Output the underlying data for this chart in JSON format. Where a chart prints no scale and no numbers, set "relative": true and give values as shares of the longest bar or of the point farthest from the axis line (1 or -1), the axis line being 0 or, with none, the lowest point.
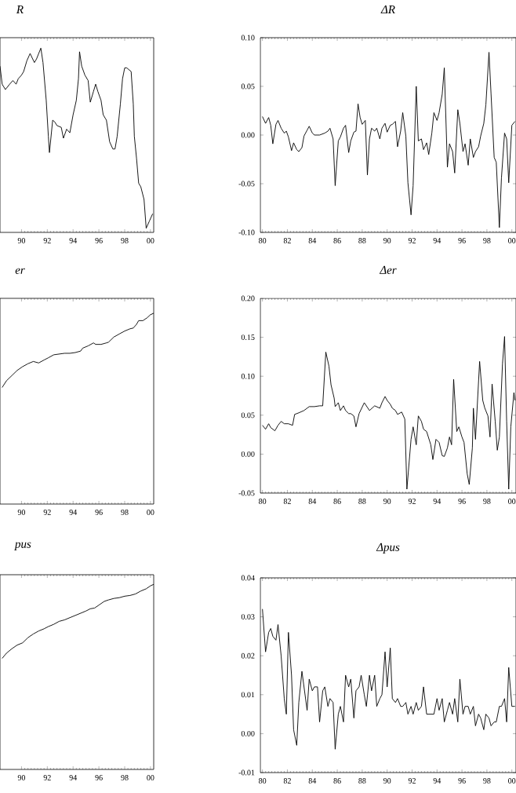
{
  "chart_data": [
    {
      "type": "line",
      "title": "R",
      "relative": true,
      "color": "#000000",
      "xlim": [
        "1988-05",
        "2000-04"
      ],
      "xticks": [
        {
          "value": "1990",
          "label": "90"
        },
        {
          "value": "1992",
          "label": "92"
        },
        {
          "value": "1994",
          "label": "94"
        },
        {
          "value": "1996",
          "label": "96"
        },
        {
          "value": "1998",
          "label": "98"
        },
        {
          "value": "2000",
          "label": "00"
        }
      ],
      "x": [
        "1988-05",
        "1988-07",
        "1988-10",
        "1989-02",
        "1989-05",
        "1989-08",
        "1989-10",
        "1990-01",
        "1990-03",
        "1990-06",
        "1990-09",
        "1991-01",
        "1991-03",
        "1991-07",
        "1991-09",
        "1991-12",
        "1992-02",
        "1992-03",
        "1992-06",
        "1992-08",
        "1992-10",
        "1993-02",
        "1993-04",
        "1993-07",
        "1993-10",
        "1994-01",
        "1994-04",
        "1994-06",
        "1994-07",
        "1994-09",
        "1994-12",
        "1995-03",
        "1995-05",
        "1995-08",
        "1995-10",
        "1995-12",
        "1996-03",
        "1996-05",
        "1996-08",
        "1996-11",
        "1997-02",
        "1997-04",
        "1997-06",
        "1997-09",
        "1997-11",
        "1998-01",
        "1998-03",
        "1998-07",
        "1998-09",
        "1998-10",
        "1998-12",
        "1999-02",
        "1999-04",
        "1999-07",
        "1999-09",
        "1999-12",
        "2000-03"
      ],
      "values": [
        0.9,
        0.8,
        0.77,
        0.8,
        0.82,
        0.8,
        0.83,
        0.85,
        0.87,
        0.93,
        0.97,
        0.92,
        0.94,
        1.0,
        0.92,
        0.71,
        0.51,
        0.42,
        0.6,
        0.59,
        0.57,
        0.56,
        0.5,
        0.55,
        0.53,
        0.63,
        0.71,
        0.83,
        0.98,
        0.9,
        0.85,
        0.82,
        0.7,
        0.76,
        0.8,
        0.76,
        0.71,
        0.63,
        0.6,
        0.48,
        0.44,
        0.44,
        0.51,
        0.69,
        0.83,
        0.89,
        0.89,
        0.87,
        0.69,
        0.51,
        0.39,
        0.25,
        0.23,
        0.16,
        0.0,
        0.04,
        0.08
      ]
    },
    {
      "type": "line",
      "title": "ΔR",
      "color": "#000000",
      "xlim": [
        "1979-11",
        "2000-05"
      ],
      "ylim": [
        -0.1,
        0.1
      ],
      "xticks": [
        {
          "value": "1980",
          "label": "80"
        },
        {
          "value": "1982",
          "label": "82"
        },
        {
          "value": "1984",
          "label": "84"
        },
        {
          "value": "1986",
          "label": "86"
        },
        {
          "value": "1988",
          "label": "88"
        },
        {
          "value": "1990",
          "label": "90"
        },
        {
          "value": "1992",
          "label": "92"
        },
        {
          "value": "1994",
          "label": "94"
        },
        {
          "value": "1996",
          "label": "96"
        },
        {
          "value": "1998",
          "label": "98"
        },
        {
          "value": "2000",
          "label": "00"
        }
      ],
      "yticks": [
        {
          "value": -0.1,
          "label": "-0.10"
        },
        {
          "value": -0.05,
          "label": "-0.05"
        },
        {
          "value": 0,
          "label": "0.00"
        },
        {
          "value": 0.05,
          "label": "0.05"
        },
        {
          "value": 0.1,
          "label": "0.10"
        }
      ],
      "x": [
        "1980-01",
        "1980-04",
        "1980-07",
        "1980-09",
        "1980-11",
        "1981-02",
        "1981-04",
        "1981-07",
        "1981-10",
        "1981-12",
        "1982-02",
        "1982-05",
        "1982-07",
        "1982-10",
        "1982-12",
        "1983-03",
        "1983-05",
        "1983-08",
        "1983-10",
        "1984-01",
        "1984-03",
        "1984-08",
        "1985-01",
        "1985-04",
        "1985-06",
        "1985-09",
        "1985-11",
        "1986-02",
        "1986-04",
        "1986-07",
        "1986-09",
        "1986-12",
        "1987-02",
        "1987-05",
        "1987-07",
        "1987-09",
        "1987-11",
        "1988-01",
        "1988-04",
        "1988-06",
        "1988-08",
        "1988-10",
        "1989-01",
        "1989-03",
        "1989-06",
        "1989-08",
        "1989-11",
        "1990-01",
        "1990-04",
        "1990-06",
        "1990-09",
        "1990-11",
        "1991-02",
        "1991-04",
        "1991-07",
        "1991-09",
        "1991-12",
        "1992-02",
        "1992-05",
        "1992-07",
        "1992-10",
        "1992-12",
        "1993-03",
        "1993-05",
        "1993-08",
        "1993-10",
        "1994-01",
        "1994-03",
        "1994-06",
        "1994-08",
        "1994-11",
        "1995-01",
        "1995-04",
        "1995-06",
        "1995-09",
        "1995-11",
        "1996-02",
        "1996-04",
        "1996-07",
        "1996-09",
        "1996-12",
        "1997-02",
        "1997-05",
        "1997-07",
        "1997-10",
        "1997-12",
        "1998-03",
        "1998-05",
        "1998-08",
        "1998-10",
        "1999-01",
        "1999-03",
        "1999-06",
        "1999-08",
        "1999-10",
        "2000-01",
        "2000-04"
      ],
      "values": [
        0.019,
        0.012,
        0.018,
        0.01,
        -0.009,
        0.011,
        0.015,
        0.007,
        0.002,
        0.004,
        -0.002,
        -0.016,
        -0.008,
        -0.015,
        -0.017,
        -0.013,
        -0.001,
        0.005,
        0.009,
        0.002,
        0.0,
        0.0,
        0.002,
        0.004,
        0.007,
        -0.004,
        -0.052,
        -0.006,
        -0.002,
        0.007,
        0.01,
        -0.018,
        -0.006,
        0.003,
        0.004,
        0.032,
        0.018,
        0.011,
        0.015,
        -0.041,
        -0.004,
        0.007,
        0.004,
        0.007,
        -0.004,
        0.007,
        0.012,
        0.003,
        0.01,
        0.011,
        0.014,
        -0.012,
        0.004,
        0.023,
        -0.001,
        -0.049,
        -0.082,
        -0.052,
        0.05,
        -0.006,
        -0.004,
        -0.015,
        -0.008,
        -0.02,
        0.002,
        0.023,
        0.015,
        0.023,
        0.042,
        0.069,
        -0.033,
        -0.009,
        -0.017,
        -0.039,
        0.026,
        0.012,
        -0.017,
        -0.009,
        -0.031,
        -0.004,
        -0.023,
        -0.017,
        -0.012,
        -0.001,
        0.012,
        0.031,
        0.085,
        0.042,
        -0.023,
        -0.028,
        -0.095,
        -0.044,
        0.002,
        -0.004,
        -0.049,
        0.01,
        0.014
      ]
    },
    {
      "type": "line",
      "title": "er",
      "relative": true,
      "color": "#000000",
      "xlim": [
        "1988-05",
        "2000-04"
      ],
      "xticks": [
        {
          "value": "1990",
          "label": "90"
        },
        {
          "value": "1992",
          "label": "92"
        },
        {
          "value": "1994",
          "label": "94"
        },
        {
          "value": "1996",
          "label": "96"
        },
        {
          "value": "1998",
          "label": "98"
        },
        {
          "value": "2000",
          "label": "00"
        }
      ],
      "x": [
        "1988-07",
        "1988-11",
        "1989-04",
        "1989-09",
        "1990-02",
        "1990-07",
        "1990-12",
        "1991-05",
        "1991-10",
        "1992-02",
        "1992-07",
        "1992-12",
        "1993-05",
        "1993-10",
        "1994-03",
        "1994-08",
        "1994-10",
        "1995-03",
        "1995-08",
        "1995-10",
        "1996-03",
        "1996-08",
        "1996-10",
        "1997-03",
        "1997-08",
        "1998-01",
        "1998-06",
        "1998-09",
        "1998-12",
        "1999-02",
        "1999-06",
        "1999-10",
        "2000-01",
        "2000-04"
      ],
      "values": [
        0.0,
        0.09,
        0.16,
        0.23,
        0.28,
        0.32,
        0.35,
        0.33,
        0.37,
        0.4,
        0.44,
        0.45,
        0.46,
        0.46,
        0.47,
        0.49,
        0.53,
        0.56,
        0.6,
        0.58,
        0.58,
        0.6,
        0.61,
        0.68,
        0.72,
        0.76,
        0.79,
        0.8,
        0.85,
        0.9,
        0.9,
        0.94,
        0.98,
        1.0
      ]
    },
    {
      "type": "line",
      "title": "Δer",
      "color": "#000000",
      "xlim": [
        "1979-11",
        "2000-05"
      ],
      "ylim": [
        -0.05,
        0.2
      ],
      "xticks": [
        {
          "value": "1980",
          "label": "80"
        },
        {
          "value": "1982",
          "label": "82"
        },
        {
          "value": "1984",
          "label": "84"
        },
        {
          "value": "1986",
          "label": "86"
        },
        {
          "value": "1988",
          "label": "88"
        },
        {
          "value": "1990",
          "label": "90"
        },
        {
          "value": "1992",
          "label": "92"
        },
        {
          "value": "1994",
          "label": "94"
        },
        {
          "value": "1996",
          "label": "96"
        },
        {
          "value": "1998",
          "label": "98"
        },
        {
          "value": "2000",
          "label": "00"
        }
      ],
      "yticks": [
        {
          "value": -0.05,
          "label": "-0.05"
        },
        {
          "value": 0,
          "label": "0.00"
        },
        {
          "value": 0.05,
          "label": "0.05"
        },
        {
          "value": 0.1,
          "label": "0.10"
        },
        {
          "value": 0.15,
          "label": "0.15"
        },
        {
          "value": 0.2,
          "label": "0.20"
        }
      ],
      "x": [
        "1980-01",
        "1980-04",
        "1980-07",
        "1980-09",
        "1981-01",
        "1981-04",
        "1981-07",
        "1981-10",
        "1982-02",
        "1982-06",
        "1982-08",
        "1982-12",
        "1983-05",
        "1983-10",
        "1984-03",
        "1984-08",
        "1984-11",
        "1985-02",
        "1985-05",
        "1985-07",
        "1985-10",
        "1985-11",
        "1986-02",
        "1986-04",
        "1986-07",
        "1986-09",
        "1986-12",
        "1987-02",
        "1987-05",
        "1987-07",
        "1987-10",
        "1988-03",
        "1988-08",
        "1989-01",
        "1989-06",
        "1989-08",
        "1989-11",
        "1990-01",
        "1990-04",
        "1990-06",
        "1990-09",
        "1990-11",
        "1991-03",
        "1991-06",
        "1991-08",
        "1991-12",
        "1992-02",
        "1992-05",
        "1992-07",
        "1992-10",
        "1992-12",
        "1993-03",
        "1993-07",
        "1993-09",
        "1993-12",
        "1994-03",
        "1994-06",
        "1994-08",
        "1994-11",
        "1995-01",
        "1995-03",
        "1995-05",
        "1995-08",
        "1995-10",
        "1996-01",
        "1996-03",
        "1996-06",
        "1996-08",
        "1996-11",
        "1996-12",
        "1997-02",
        "1997-06",
        "1997-09",
        "1997-11",
        "1998-02",
        "1998-04",
        "1998-06",
        "1998-09",
        "1998-11",
        "1999-01",
        "1999-04",
        "1999-06",
        "1999-08",
        "1999-10",
        "1999-12",
        "2000-03",
        "2000-04"
      ],
      "values": [
        0.037,
        0.032,
        0.039,
        0.034,
        0.03,
        0.037,
        0.042,
        0.039,
        0.039,
        0.037,
        0.051,
        0.053,
        0.056,
        0.061,
        0.061,
        0.062,
        0.062,
        0.131,
        0.113,
        0.089,
        0.072,
        0.061,
        0.066,
        0.056,
        0.062,
        0.056,
        0.052,
        0.052,
        0.049,
        0.035,
        0.052,
        0.066,
        0.056,
        0.062,
        0.059,
        0.066,
        0.074,
        0.069,
        0.064,
        0.059,
        0.056,
        0.051,
        0.054,
        0.045,
        -0.045,
        0.019,
        0.035,
        0.012,
        0.049,
        0.042,
        0.032,
        0.029,
        0.012,
        -0.007,
        0.019,
        0.015,
        -0.002,
        -0.003,
        0.008,
        0.022,
        0.012,
        0.096,
        0.029,
        0.035,
        0.022,
        0.015,
        -0.025,
        -0.039,
        0.008,
        0.059,
        0.019,
        0.119,
        0.069,
        0.059,
        0.049,
        0.022,
        0.09,
        0.042,
        0.005,
        0.022,
        0.116,
        0.151,
        0.042,
        -0.045,
        0.035,
        0.079,
        0.069
      ]
    },
    {
      "type": "line",
      "title": "pus",
      "relative": true,
      "color": "#000000",
      "xlim": [
        "1988-05",
        "2000-04"
      ],
      "xticks": [
        {
          "value": "1990",
          "label": "90"
        },
        {
          "value": "1992",
          "label": "92"
        },
        {
          "value": "1994",
          "label": "94"
        },
        {
          "value": "1996",
          "label": "96"
        },
        {
          "value": "1998",
          "label": "98"
        },
        {
          "value": "2000",
          "label": "00"
        }
      ],
      "x": [
        "1988-07",
        "1988-11",
        "1989-04",
        "1989-09",
        "1990-02",
        "1990-07",
        "1990-12",
        "1991-05",
        "1991-10",
        "1992-02",
        "1992-07",
        "1992-12",
        "1993-05",
        "1993-10",
        "1994-03",
        "1994-08",
        "1995-01",
        "1995-05",
        "1995-09",
        "1996-01",
        "1996-06",
        "1996-10",
        "1997-03",
        "1997-08",
        "1998-01",
        "1998-06",
        "1998-11",
        "1999-04",
        "1999-09",
        "2000-01",
        "2000-04"
      ],
      "values": [
        0.0,
        0.07,
        0.13,
        0.18,
        0.21,
        0.28,
        0.33,
        0.37,
        0.4,
        0.43,
        0.46,
        0.5,
        0.52,
        0.55,
        0.58,
        0.61,
        0.64,
        0.67,
        0.68,
        0.72,
        0.77,
        0.79,
        0.81,
        0.82,
        0.84,
        0.85,
        0.87,
        0.91,
        0.94,
        0.98,
        1.0
      ]
    },
    {
      "type": "line",
      "title": "Δpus",
      "color": "#000000",
      "xlim": [
        "1979-11",
        "2000-05"
      ],
      "ylim": [
        -0.01,
        0.04
      ],
      "xticks": [
        {
          "value": "1980",
          "label": "80"
        },
        {
          "value": "1982",
          "label": "82"
        },
        {
          "value": "1984",
          "label": "84"
        },
        {
          "value": "1986",
          "label": "86"
        },
        {
          "value": "1988",
          "label": "88"
        },
        {
          "value": "1990",
          "label": "90"
        },
        {
          "value": "1992",
          "label": "92"
        },
        {
          "value": "1994",
          "label": "94"
        },
        {
          "value": "1996",
          "label": "96"
        },
        {
          "value": "1998",
          "label": "98"
        },
        {
          "value": "2000",
          "label": "00"
        }
      ],
      "yticks": [
        {
          "value": -0.01,
          "label": "-0.01"
        },
        {
          "value": 0,
          "label": "0.00"
        },
        {
          "value": 0.01,
          "label": "0.01"
        },
        {
          "value": 0.02,
          "label": "0.02"
        },
        {
          "value": 0.03,
          "label": "0.03"
        },
        {
          "value": 0.04,
          "label": "0.04"
        }
      ],
      "x": [
        "1980-01",
        "1980-04",
        "1980-07",
        "1980-09",
        "1980-11",
        "1981-02",
        "1981-04",
        "1981-07",
        "1981-10",
        "1981-12",
        "1982-02",
        "1982-05",
        "1982-07",
        "1982-10",
        "1982-12",
        "1983-03",
        "1983-05",
        "1983-08",
        "1983-10",
        "1984-01",
        "1984-03",
        "1984-06",
        "1984-08",
        "1984-11",
        "1985-01",
        "1985-04",
        "1985-06",
        "1985-09",
        "1985-11",
        "1986-02",
        "1986-04",
        "1986-07",
        "1986-09",
        "1986-12",
        "1987-02",
        "1987-05",
        "1987-07",
        "1987-10",
        "1987-12",
        "1988-03",
        "1988-05",
        "1988-08",
        "1988-10",
        "1989-01",
        "1989-03",
        "1989-06",
        "1989-08",
        "1989-11",
        "1990-01",
        "1990-04",
        "1990-06",
        "1990-09",
        "1990-11",
        "1991-02",
        "1991-04",
        "1991-07",
        "1991-09",
        "1991-12",
        "1992-02",
        "1992-05",
        "1992-07",
        "1992-10",
        "1992-12",
        "1993-03",
        "1993-05",
        "1993-08",
        "1993-10",
        "1994-01",
        "1994-03",
        "1994-06",
        "1994-08",
        "1994-11",
        "1995-01",
        "1995-04",
        "1995-06",
        "1995-09",
        "1995-11",
        "1996-02",
        "1996-04",
        "1996-07",
        "1996-09",
        "1996-12",
        "1997-02",
        "1997-05",
        "1997-07",
        "1997-10",
        "1997-12",
        "1998-03",
        "1998-05",
        "1998-08",
        "1998-10",
        "1999-01",
        "1999-03",
        "1999-06",
        "1999-08",
        "1999-10",
        "2000-01",
        "2000-04"
      ],
      "values": [
        0.032,
        0.021,
        0.026,
        0.027,
        0.025,
        0.024,
        0.028,
        0.02,
        0.009,
        0.005,
        0.026,
        0.015,
        0.001,
        -0.003,
        0.008,
        0.016,
        0.012,
        0.006,
        0.014,
        0.011,
        0.012,
        0.012,
        0.003,
        0.011,
        0.012,
        0.007,
        0.009,
        0.008,
        -0.004,
        0.005,
        0.007,
        0.003,
        0.015,
        0.012,
        0.014,
        0.004,
        0.011,
        0.012,
        0.015,
        0.01,
        0.007,
        0.015,
        0.011,
        0.015,
        0.007,
        0.009,
        0.01,
        0.021,
        0.012,
        0.022,
        0.009,
        0.008,
        0.009,
        0.007,
        0.007,
        0.008,
        0.005,
        0.007,
        0.005,
        0.008,
        0.006,
        0.007,
        0.012,
        0.005,
        0.005,
        0.005,
        0.005,
        0.009,
        0.006,
        0.009,
        0.003,
        0.006,
        0.008,
        0.005,
        0.009,
        0.003,
        0.014,
        0.005,
        0.007,
        0.007,
        0.005,
        0.007,
        0.002,
        0.005,
        0.004,
        0.001,
        0.005,
        0.004,
        0.002,
        0.003,
        0.003,
        0.007,
        0.007,
        0.009,
        0.003,
        0.017,
        0.007,
        0.007
      ]
    }
  ]
}
